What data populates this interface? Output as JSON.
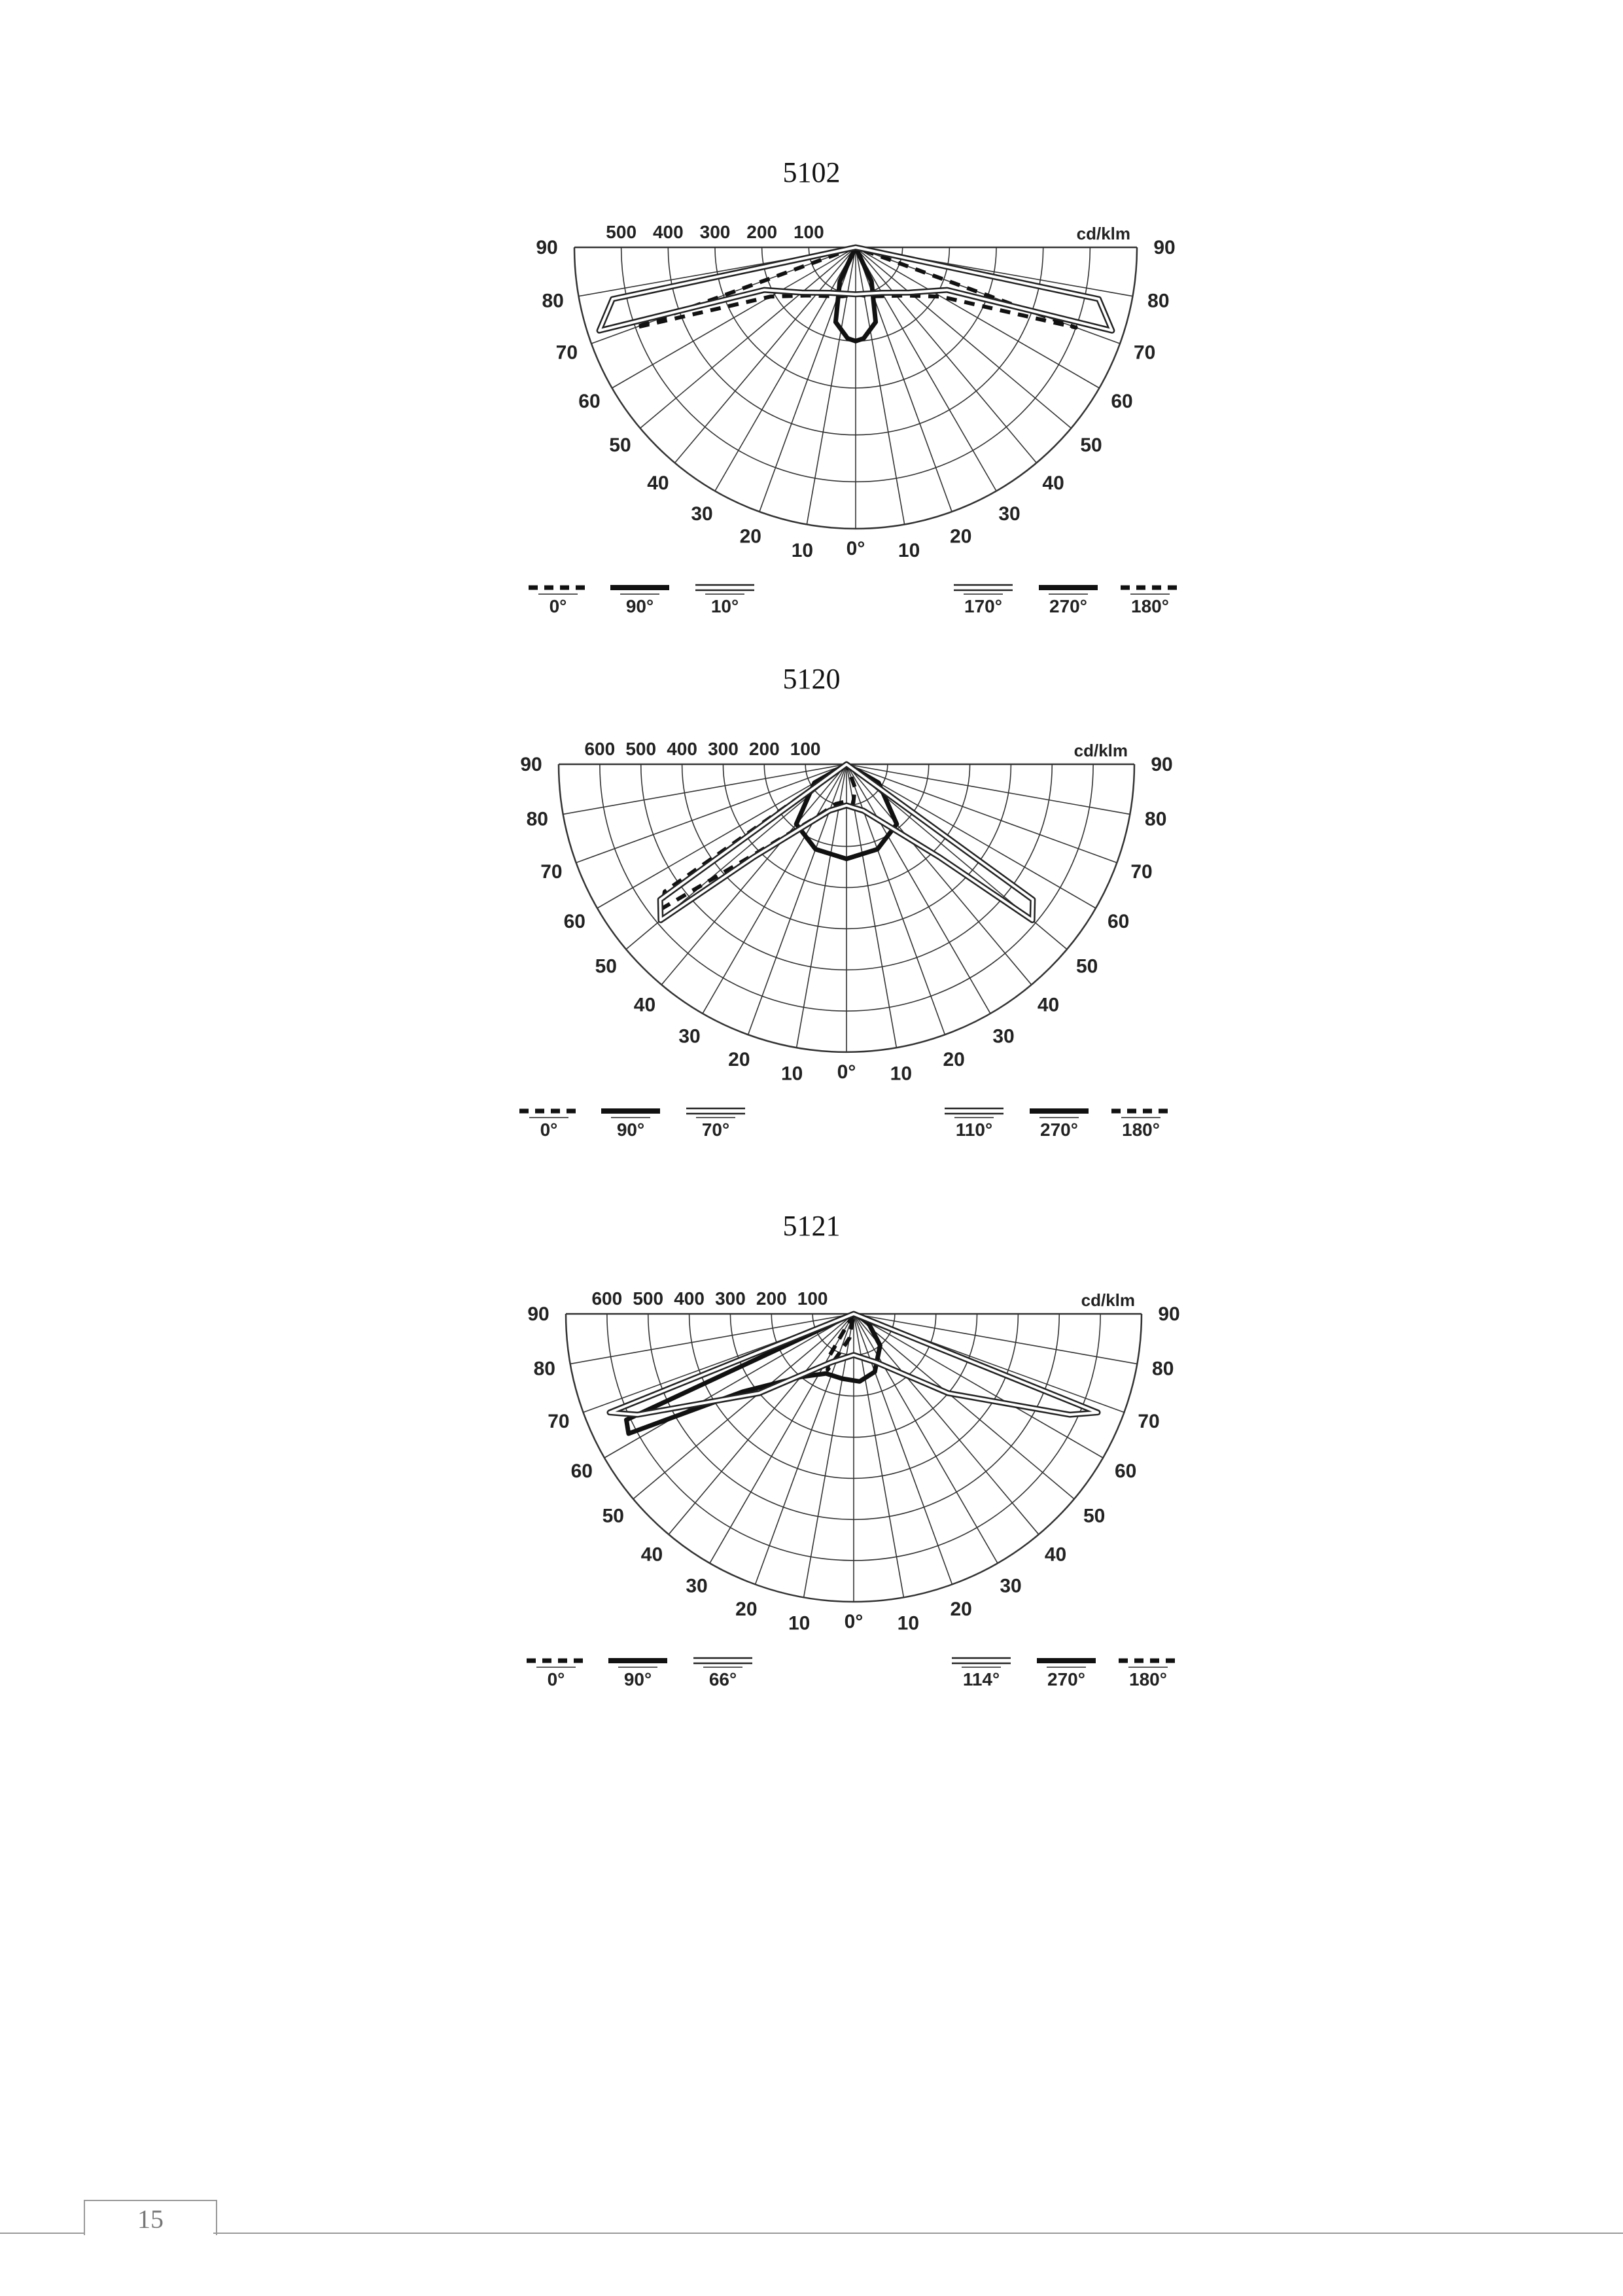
{
  "chart_data": [
    {
      "type": "polar",
      "title": "5102",
      "unit": "cd/klm",
      "radial_ticks": [
        "500",
        "400",
        "300",
        "200",
        "100"
      ],
      "rmax": 600,
      "angle_labels": [
        "90",
        "80",
        "70",
        "60",
        "50",
        "40",
        "30",
        "20",
        "10",
        "0°",
        "10",
        "20",
        "30",
        "40",
        "50",
        "60",
        "70",
        "80",
        "90"
      ],
      "legend": [
        "0°",
        "90°",
        "10°",
        "170°",
        "270°",
        "180°"
      ],
      "series": [
        {
          "name": "0°",
          "style": "dashed",
          "points": [
            [
              -72,
              0
            ],
            [
              -70,
              500
            ],
            [
              -60,
              210
            ],
            [
              -45,
              145
            ],
            [
              -30,
              120
            ],
            [
              -15,
              108
            ],
            [
              0,
              100
            ],
            [
              15,
              108
            ],
            [
              30,
              120
            ],
            [
              45,
              145
            ],
            [
              60,
              210
            ],
            [
              70,
              500
            ],
            [
              72,
              0
            ]
          ]
        },
        {
          "name": "90°",
          "style": "thick",
          "points": [
            [
              -30,
              0
            ],
            [
              -25,
              80
            ],
            [
              -15,
              165
            ],
            [
              -5,
              195
            ],
            [
              0,
              200
            ],
            [
              5,
              195
            ],
            [
              15,
              165
            ],
            [
              25,
              80
            ],
            [
              30,
              0
            ]
          ]
        },
        {
          "name": "10°",
          "style": "double",
          "points": [
            [
              -80,
              0
            ],
            [
              -78,
              530
            ],
            [
              -72,
              575
            ],
            [
              -65,
              215
            ],
            [
              -50,
              150
            ],
            [
              -30,
              112
            ],
            [
              0,
              100
            ],
            [
              30,
              112
            ],
            [
              50,
              150
            ],
            [
              65,
              215
            ],
            [
              72,
              575
            ],
            [
              78,
              530
            ],
            [
              80,
              0
            ]
          ]
        }
      ]
    },
    {
      "type": "polar",
      "title": "5120",
      "unit": "cd/klm",
      "radial_ticks": [
        "600",
        "500",
        "400",
        "300",
        "200",
        "100"
      ],
      "rmax": 700,
      "angle_labels": [
        "90",
        "80",
        "70",
        "60",
        "50",
        "40",
        "30",
        "20",
        "10",
        "0°",
        "10",
        "20",
        "30",
        "40",
        "50",
        "60",
        "70",
        "80",
        "90"
      ],
      "legend": [
        "0°",
        "90°",
        "70°",
        "110°",
        "270°",
        "180°"
      ],
      "series": [
        {
          "name": "0°",
          "style": "dashed",
          "points": [
            [
              -60,
              0
            ],
            [
              -55,
              540
            ],
            [
              -52,
              570
            ],
            [
              -45,
              300
            ],
            [
              -30,
              150
            ],
            [
              -15,
              100
            ],
            [
              0,
              90
            ],
            [
              10,
              95
            ],
            [
              20,
              60
            ],
            [
              25,
              0
            ]
          ]
        },
        {
          "name": "90°",
          "style": "thick",
          "points": [
            [
              -70,
              0
            ],
            [
              -60,
              90
            ],
            [
              -40,
              190
            ],
            [
              -20,
              220
            ],
            [
              0,
              230
            ],
            [
              20,
              220
            ],
            [
              40,
              190
            ],
            [
              60,
              90
            ],
            [
              70,
              0
            ]
          ]
        },
        {
          "name": "70°",
          "style": "double",
          "points": [
            [
              -58,
              0
            ],
            [
              -54,
              560
            ],
            [
              -50,
              590
            ],
            [
              -45,
              320
            ],
            [
              -20,
              120
            ],
            [
              0,
              100
            ],
            [
              20,
              120
            ],
            [
              45,
              320
            ],
            [
              50,
              590
            ],
            [
              54,
              560
            ],
            [
              58,
              0
            ]
          ]
        }
      ]
    },
    {
      "type": "polar",
      "title": "5121",
      "unit": "cd/klm",
      "radial_ticks": [
        "600",
        "500",
        "400",
        "300",
        "200",
        "100"
      ],
      "rmax": 700,
      "angle_labels": [
        "90",
        "80",
        "70",
        "60",
        "50",
        "40",
        "30",
        "20",
        "10",
        "0°",
        "10",
        "20",
        "30",
        "40",
        "50",
        "60",
        "70",
        "80",
        "90"
      ],
      "legend": [
        "0°",
        "90°",
        "66°",
        "114°",
        "270°",
        "180°"
      ],
      "series": [
        {
          "name": "0°",
          "style": "dashed",
          "points": [
            [
              -40,
              0
            ],
            [
              -30,
              120
            ],
            [
              -25,
              150
            ],
            [
              -18,
              90
            ],
            [
              -10,
              60
            ],
            [
              0,
              0
            ]
          ]
        },
        {
          "name": "90°",
          "style": "thick",
          "points": [
            [
              -70,
              0
            ],
            [
              -65,
              610
            ],
            [
              -62,
              620
            ],
            [
              -55,
              330
            ],
            [
              -40,
              200
            ],
            [
              -25,
              160
            ],
            [
              -10,
              160
            ],
            [
              5,
              165
            ],
            [
              20,
              150
            ],
            [
              40,
              100
            ],
            [
              60,
              40
            ],
            [
              70,
              0
            ]
          ]
        },
        {
          "name": "66°",
          "style": "double",
          "points": [
            [
              -72,
              0
            ],
            [
              -68,
              640
            ],
            [
              -65,
              580
            ],
            [
              -50,
              300
            ],
            [
              -25,
              130
            ],
            [
              0,
              100
            ],
            [
              25,
              130
            ],
            [
              50,
              300
            ],
            [
              65,
              580
            ],
            [
              68,
              640
            ],
            [
              72,
              0
            ]
          ]
        }
      ]
    }
  ],
  "footer": {
    "page_number": "15"
  }
}
